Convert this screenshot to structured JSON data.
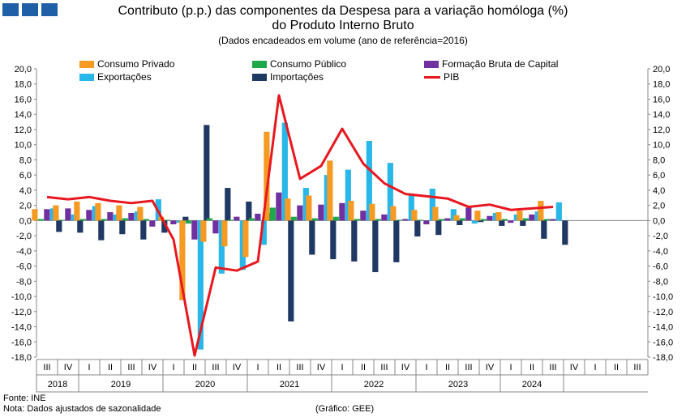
{
  "header": {
    "title_line1": "Contributo (p.p.) das componentes da Despesa para a variação homóloga (%)",
    "title_line2": "do Produto Interno Bruto",
    "subtitle": "(Dados encadeados em volume (ano de referência=2016)"
  },
  "footer": {
    "source": "Fonte:  INE",
    "note": "Nota: Dados ajustados de sazonalidade",
    "credit": "(Gráfico: GEE)"
  },
  "chart_data": {
    "type": "bar",
    "y_ticks": [
      "20,0",
      "18,0",
      "16,0",
      "14,0",
      "12,0",
      "10,0",
      "8,0",
      "6,0",
      "4,0",
      "2,0",
      "0,0",
      "-2,0",
      "-4,0",
      "-6,0",
      "-8,0",
      "-10,0",
      "-12,0",
      "-14,0",
      "-16,0",
      "-18,0"
    ],
    "ylim": [
      -18,
      20
    ],
    "quarters": [
      "III",
      "IV",
      "I",
      "II",
      "III",
      "IV",
      "I",
      "II",
      "III",
      "IV",
      "I",
      "II",
      "III",
      "IV",
      "I",
      "II",
      "III",
      "IV",
      "I",
      "II",
      "III",
      "IV",
      "I",
      "II",
      "III",
      "IV",
      "I",
      "II",
      "III"
    ],
    "years": [
      {
        "label": "2018",
        "span": 2
      },
      {
        "label": "2019",
        "span": 4
      },
      {
        "label": "2020",
        "span": 4
      },
      {
        "label": "2021",
        "span": 4
      },
      {
        "label": "2022",
        "span": 4
      },
      {
        "label": "2023",
        "span": 4
      },
      {
        "label": "2024",
        "span": 3
      }
    ],
    "series": [
      {
        "name": "Consumo Privado",
        "color": "#f59a23",
        "kind": "bar",
        "values": [
          1.5,
          2.0,
          2.5,
          2.3,
          2.0,
          1.8,
          0.5,
          -10.5,
          -2.8,
          -3.4,
          -4.8,
          11.7,
          2.9,
          3.3,
          7.9,
          2.6,
          2.2,
          1.9,
          1.4,
          1.8,
          0.7,
          1.3,
          1.1,
          1.3,
          2.6,
          null,
          null,
          null,
          null
        ]
      },
      {
        "name": "Consumo Público",
        "color": "#1fa84a",
        "kind": "bar",
        "values": [
          0.2,
          0.1,
          0.2,
          0.2,
          0.3,
          0.2,
          0.1,
          -0.4,
          0.3,
          0.1,
          0.3,
          1.7,
          0.5,
          0.3,
          0.5,
          0.2,
          0.2,
          0.1,
          0.1,
          0.2,
          0.3,
          0.2,
          0.2,
          0.3,
          0.2,
          null,
          null,
          null,
          null
        ]
      },
      {
        "name": "Formação Bruta de Capital",
        "color": "#7030a0",
        "kind": "bar",
        "values": [
          1.5,
          1.6,
          1.4,
          1.1,
          1.0,
          -0.8,
          -0.5,
          -2.5,
          -1.7,
          0.5,
          0.9,
          3.7,
          2.0,
          2.1,
          2.3,
          1.3,
          0.8,
          0.2,
          -0.5,
          0.3,
          1.7,
          0.6,
          -0.3,
          0.8,
          0.2,
          null,
          null,
          null,
          null
        ]
      },
      {
        "name": "Exportações",
        "color": "#29b6e8",
        "kind": "bar",
        "values": [
          1.6,
          0.8,
          1.9,
          0.8,
          1.2,
          2.8,
          -0.3,
          -17.0,
          -7.0,
          -6.5,
          -3.2,
          12.9,
          4.3,
          6.0,
          6.7,
          10.5,
          7.6,
          3.3,
          4.2,
          1.5,
          -0.4,
          1.0,
          0.8,
          1.2,
          2.4,
          null,
          null,
          null,
          null
        ]
      },
      {
        "name": "Importações",
        "color": "#1f3864",
        "kind": "bar",
        "values": [
          -1.5,
          -1.6,
          -2.6,
          -1.8,
          -2.5,
          -1.6,
          0.5,
          12.6,
          4.3,
          2.5,
          1.0,
          -13.3,
          -4.5,
          -5.1,
          -5.4,
          -6.8,
          -5.5,
          -2.1,
          -1.9,
          -0.6,
          -0.2,
          -0.7,
          -0.7,
          -2.4,
          -3.2,
          null,
          null,
          null,
          null
        ]
      },
      {
        "name": "PIB",
        "color": "#e8171f",
        "kind": "line",
        "values": [
          3.1,
          2.8,
          3.1,
          2.6,
          2.3,
          2.6,
          -2.5,
          -17.8,
          -6.2,
          -6.6,
          -5.4,
          16.5,
          5.5,
          7.2,
          12.1,
          7.5,
          4.9,
          3.5,
          3.2,
          2.9,
          1.8,
          2.1,
          1.4,
          1.6,
          1.8,
          null,
          null,
          null,
          null
        ]
      }
    ]
  }
}
